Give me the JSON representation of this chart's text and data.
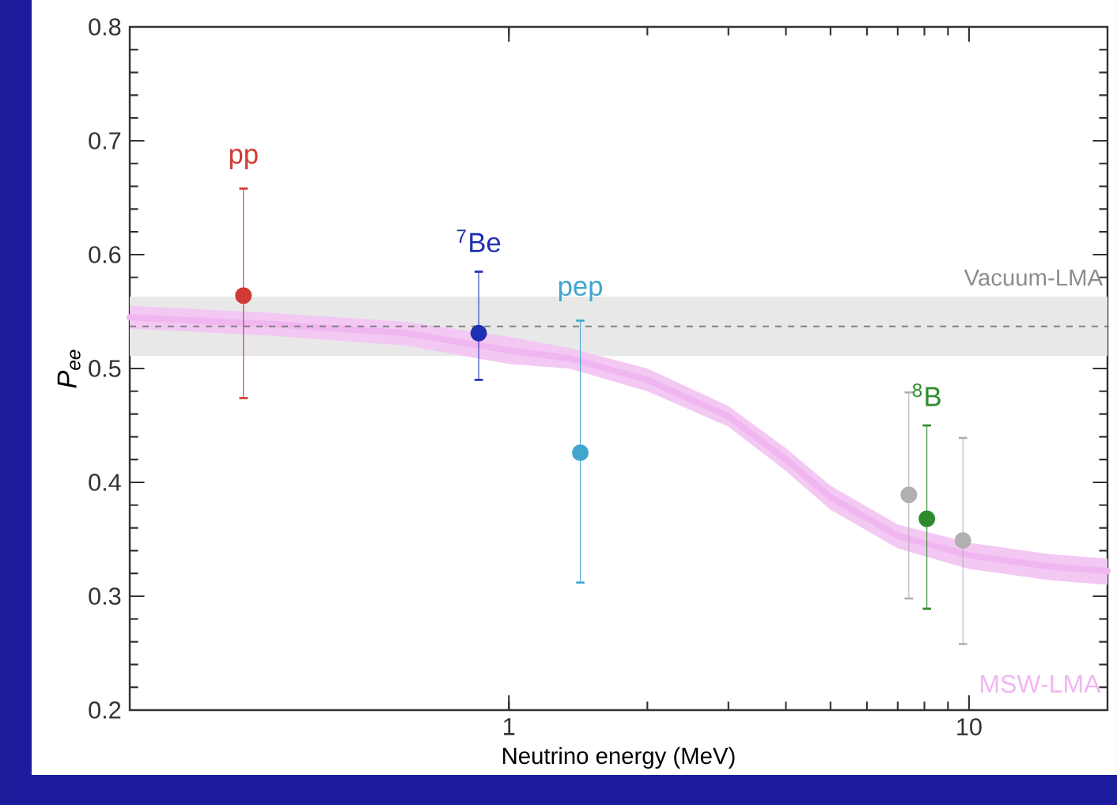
{
  "chart_data": {
    "type": "scatter",
    "xlabel": "Neutrino energy (MeV)",
    "ylabel": "P$_{ee}$",
    "log": "x",
    "xlim": [
      0.15,
      20
    ],
    "ylim": [
      0.2,
      0.8
    ],
    "xticks": [
      1,
      10
    ],
    "yticks": [
      0.2,
      0.3,
      0.4,
      0.5,
      0.6,
      0.7,
      0.8
    ],
    "legend": false,
    "grid": false,
    "bands": [
      {
        "axis": "y",
        "from": 0.511,
        "to": 0.563,
        "label": "Vacuum-LMA",
        "color": "#e8e8e8"
      }
    ],
    "ref_lines": [
      {
        "axis": "y",
        "value": 0.537,
        "color": "#808080",
        "line_style": "dashed"
      }
    ],
    "series": [
      {
        "name": "MSW-LMA",
        "type": "line",
        "marker": "none",
        "color": "#f0b6f0",
        "x": [
          0.15,
          0.3,
          0.6,
          1,
          1.35,
          2,
          3,
          4,
          5,
          7,
          10,
          15,
          20
        ],
        "values": [
          0.545,
          0.539,
          0.531,
          0.516,
          0.509,
          0.49,
          0.458,
          0.42,
          0.387,
          0.353,
          0.336,
          0.326,
          0.322
        ],
        "lower": [
          0.535,
          0.529,
          0.52,
          0.504,
          0.5,
          0.48,
          0.449,
          0.41,
          0.376,
          0.342,
          0.324,
          0.314,
          0.31
        ],
        "upper": [
          0.555,
          0.549,
          0.541,
          0.528,
          0.518,
          0.5,
          0.467,
          0.43,
          0.397,
          0.363,
          0.347,
          0.337,
          0.333
        ]
      },
      {
        "name": "pp",
        "color": "#d23a35",
        "x": [
          0.265
        ],
        "values": [
          0.564
        ],
        "errors": [
          [
            0.474,
            0.658
          ]
        ]
      },
      {
        "name": "$^{7}$Be",
        "color": "#1f2fb5",
        "x": [
          0.86
        ],
        "values": [
          0.531
        ],
        "errors": [
          [
            0.49,
            0.585
          ]
        ]
      },
      {
        "name": "pep",
        "color": "#3fa6cf",
        "x": [
          1.43
        ],
        "values": [
          0.426
        ],
        "errors": [
          [
            0.312,
            0.542
          ]
        ]
      },
      {
        "color": "#b0b0b0",
        "x": [
          7.4,
          9.7
        ],
        "values": [
          0.389,
          0.349
        ],
        "errors": [
          [
            0.298,
            0.479
          ],
          [
            0.258,
            0.439
          ]
        ]
      },
      {
        "name": "$^{8}$B",
        "color": "#2e8b2e",
        "x": [
          8.1
        ],
        "values": [
          0.368
        ],
        "errors": [
          [
            0.289,
            0.45
          ]
        ]
      }
    ]
  }
}
